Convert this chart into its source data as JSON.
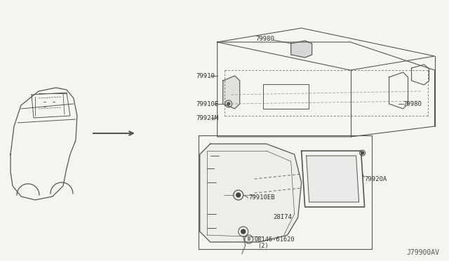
{
  "bg_color": "#f5f5f0",
  "line_color": "#555555",
  "title_text": "J79900AV",
  "labels": {
    "79980_top": "79980",
    "79910": "79910",
    "79910E": "79910E",
    "79921M": "79921M",
    "79980_right": "79980",
    "79920A": "79920A",
    "79910EB": "79910EB",
    "28174": "28I74",
    "08146": "08146-61620",
    "qty": "(2)"
  }
}
